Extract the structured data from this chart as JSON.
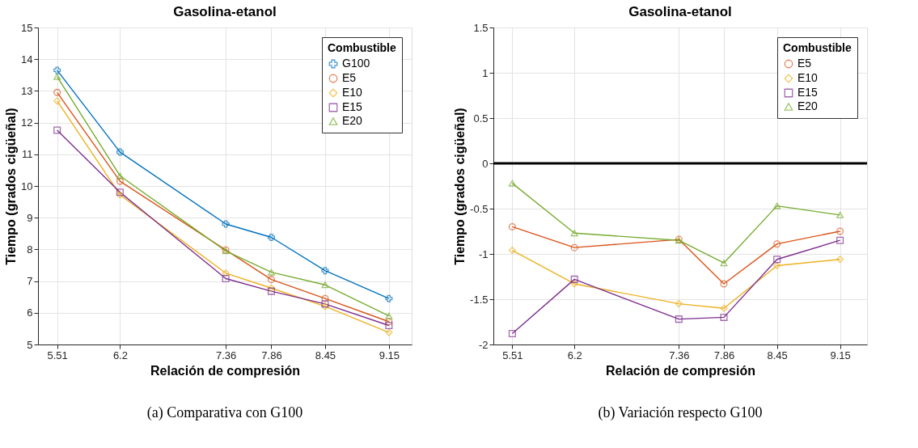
{
  "chart_data": [
    {
      "type": "line",
      "title": "Gasolina-etanol",
      "xlabel": "Relación de compresión",
      "ylabel": "Tiempo (grados cigüeñal)",
      "legend_title": "Combustible",
      "legend": "top right",
      "grid": true,
      "x": [
        5.51,
        6.2,
        7.36,
        7.86,
        8.45,
        9.15
      ],
      "xlim": [
        5.3,
        9.4
      ],
      "xticks": [
        5.51,
        6.2,
        7.36,
        7.86,
        8.45,
        9.15
      ],
      "ylim": [
        5,
        15
      ],
      "yticks": [
        5,
        6,
        7,
        8,
        9,
        10,
        11,
        12,
        13,
        14,
        15
      ],
      "series": [
        {
          "name": "G100",
          "color": "#0072bd",
          "marker": "cross",
          "values": [
            13.65,
            11.07,
            8.8,
            8.38,
            7.33,
            6.45
          ]
        },
        {
          "name": "E5",
          "color": "#d95319",
          "marker": "circle",
          "values": [
            12.95,
            10.15,
            7.98,
            7.05,
            6.45,
            5.72
          ]
        },
        {
          "name": "E10",
          "color": "#edb120",
          "marker": "diamond",
          "values": [
            12.68,
            9.72,
            7.25,
            6.78,
            6.2,
            5.38
          ]
        },
        {
          "name": "E15",
          "color": "#7e2f8e",
          "marker": "square",
          "values": [
            11.76,
            9.8,
            7.08,
            6.68,
            6.28,
            5.6
          ]
        },
        {
          "name": "E20",
          "color": "#77ac30",
          "marker": "triangle",
          "values": [
            13.45,
            10.32,
            7.95,
            7.28,
            6.88,
            5.9
          ]
        }
      ],
      "annotations": [
        "(a) Comparativa con G100"
      ]
    },
    {
      "type": "line",
      "title": "Gasolina-etanol",
      "xlabel": "Relación de compresión",
      "ylabel": "Tiempo (grados cigüeñal)",
      "legend_title": "Combustible",
      "legend": "top right",
      "grid": true,
      "x": [
        5.51,
        6.2,
        7.36,
        7.86,
        8.45,
        9.15
      ],
      "xlim": [
        5.3,
        9.45
      ],
      "xticks": [
        5.51,
        6.2,
        7.36,
        7.86,
        8.45,
        9.15
      ],
      "ylim": [
        -2,
        1.5
      ],
      "yticks": [
        -2,
        -1.5,
        -1,
        -0.5,
        0,
        0.5,
        1,
        1.5
      ],
      "series": [
        {
          "name": "E5",
          "color": "#d95319",
          "marker": "circle",
          "values": [
            -0.7,
            -0.93,
            -0.84,
            -1.33,
            -0.89,
            -0.75
          ]
        },
        {
          "name": "E10",
          "color": "#edb120",
          "marker": "diamond",
          "values": [
            -0.96,
            -1.33,
            -1.55,
            -1.6,
            -1.13,
            -1.06
          ]
        },
        {
          "name": "E15",
          "color": "#7e2f8e",
          "marker": "square",
          "values": [
            -1.88,
            -1.28,
            -1.72,
            -1.7,
            -1.06,
            -0.85
          ]
        },
        {
          "name": "E20",
          "color": "#77ac30",
          "marker": "triangle",
          "values": [
            -0.22,
            -0.77,
            -0.85,
            -1.1,
            -0.47,
            -0.57
          ]
        }
      ],
      "ref_lines": [
        {
          "axis": "y",
          "value": 0,
          "color": "#000000"
        }
      ],
      "annotations": [
        "(b) Variación respecto G100"
      ]
    }
  ]
}
